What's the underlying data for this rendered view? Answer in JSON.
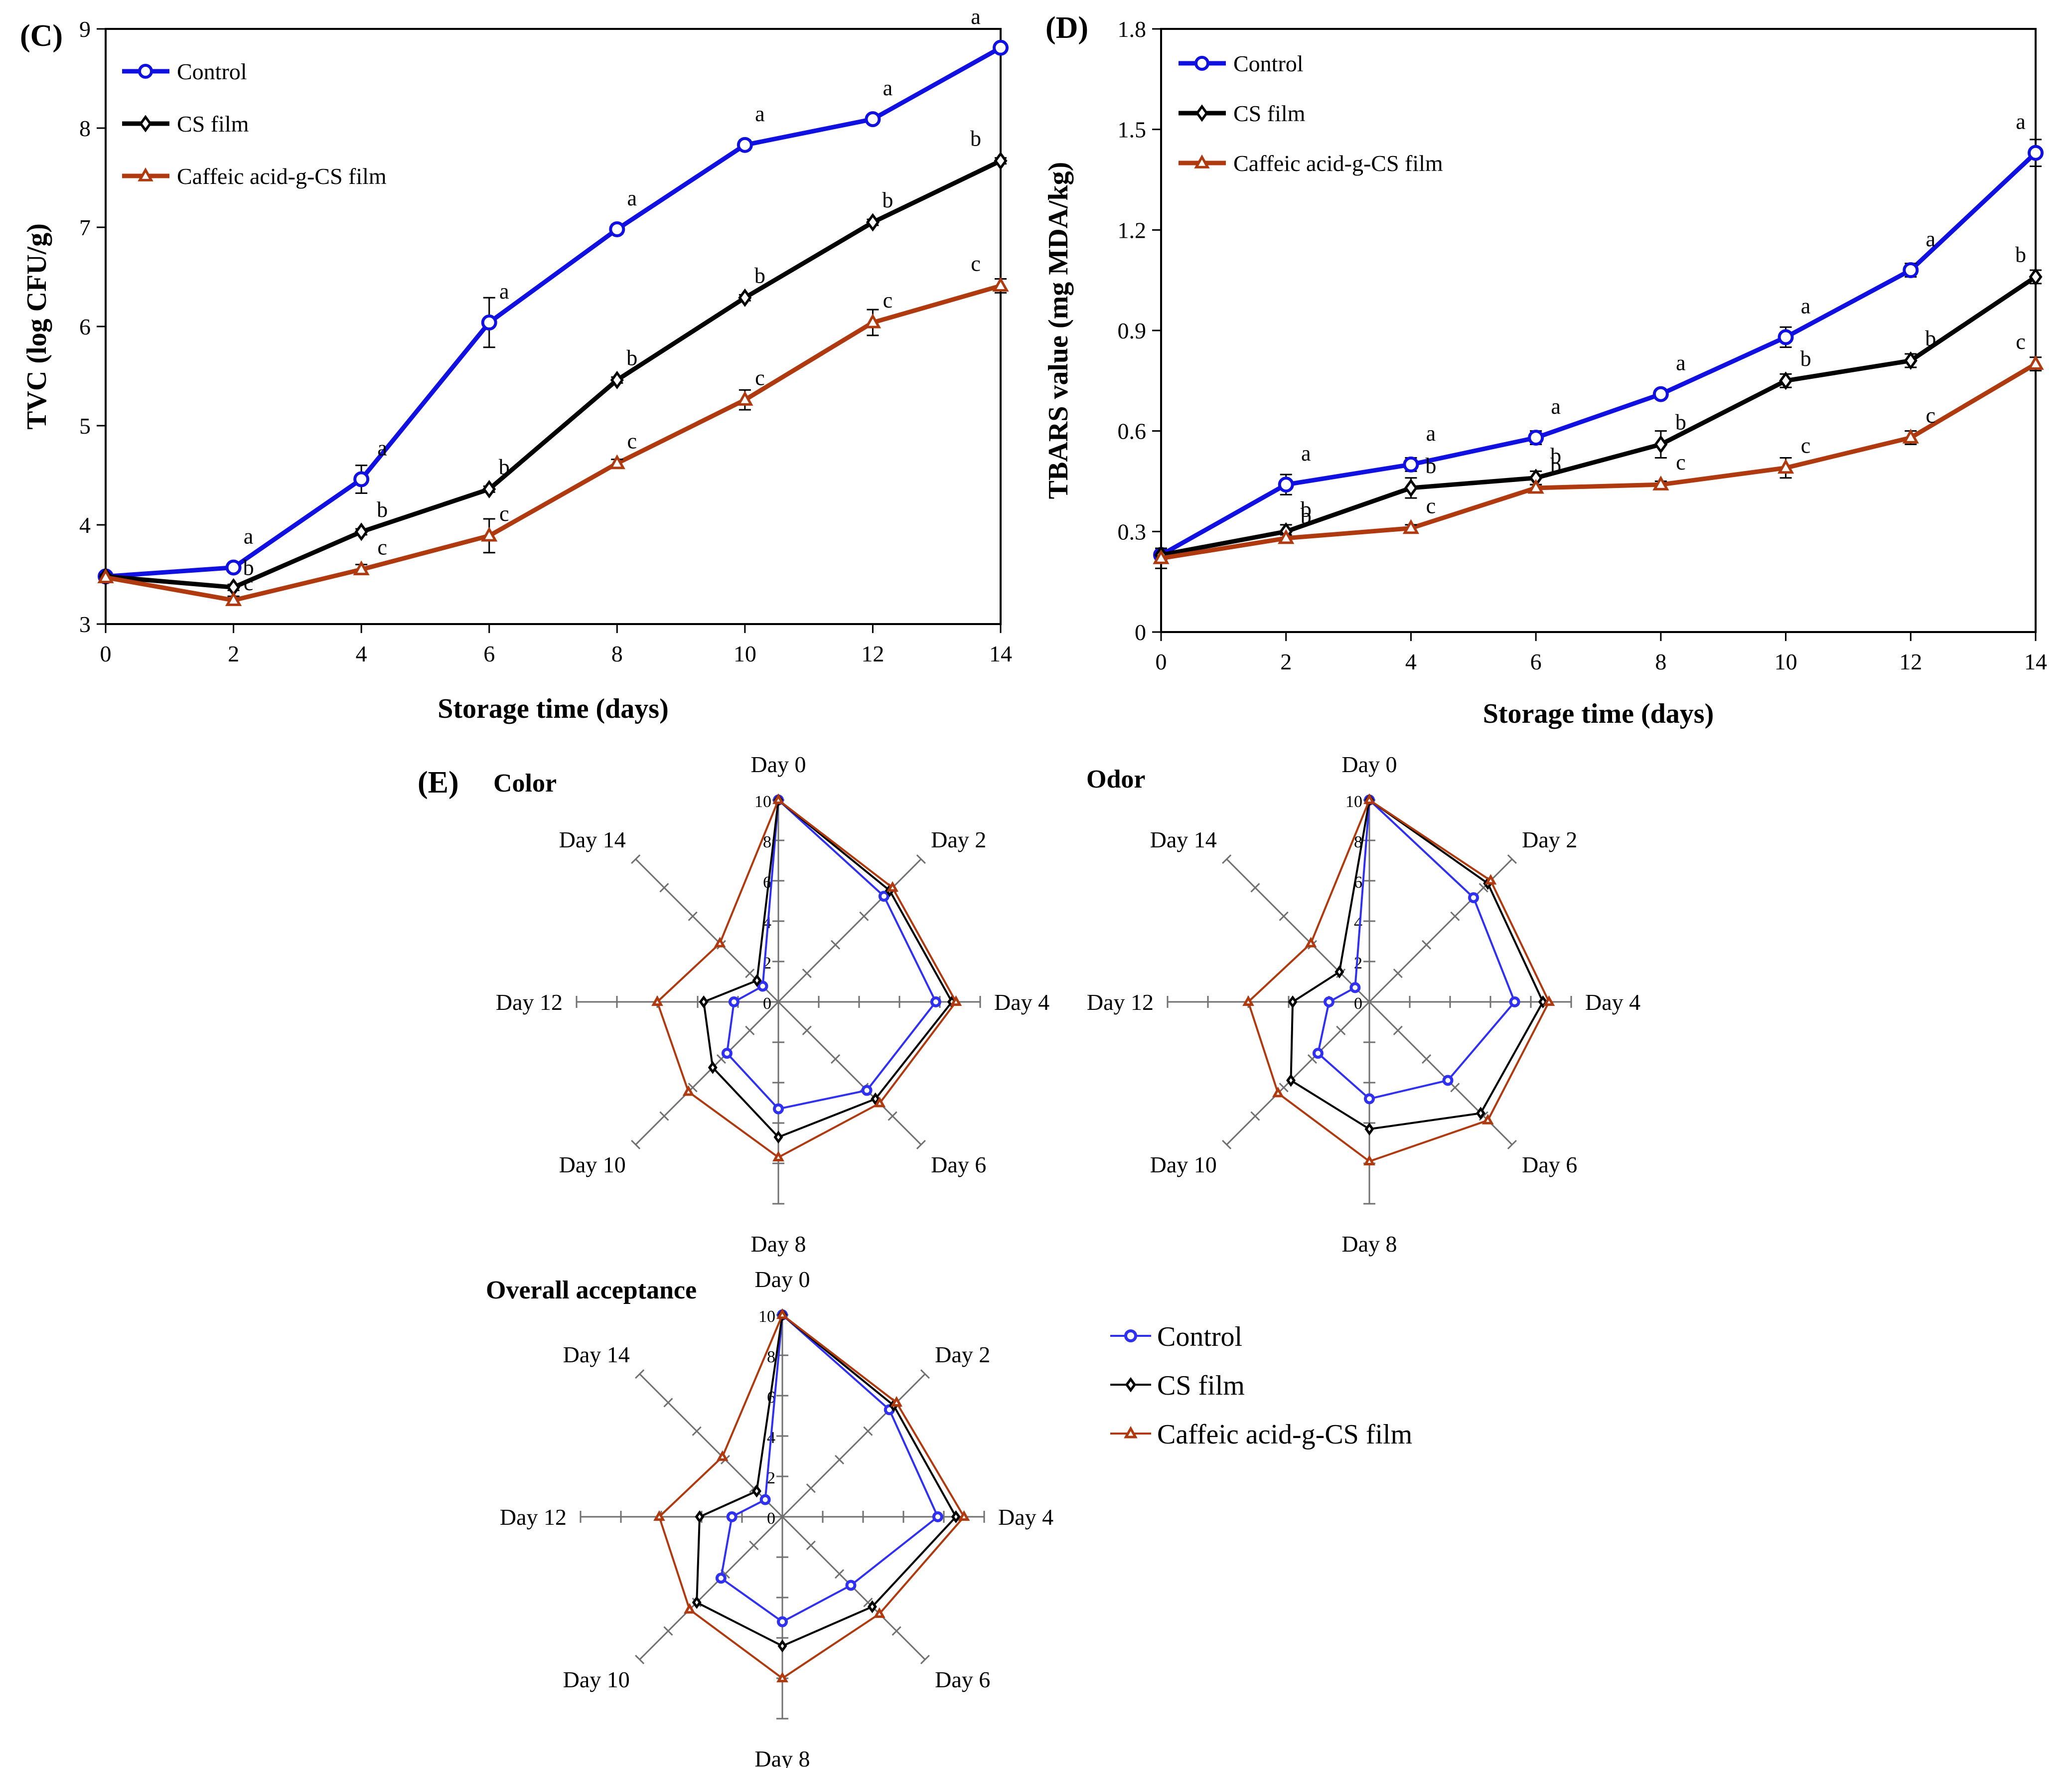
{
  "chart_data": [
    {
      "panel": "(C)",
      "type": "line",
      "xlabel": "Storage time (days)",
      "ylabel": "TVC (log CFU/g)",
      "x": [
        0,
        2,
        4,
        6,
        8,
        10,
        12,
        14
      ],
      "xlim": [
        0,
        14
      ],
      "ylim": [
        3,
        9
      ],
      "yticks": [
        3,
        4,
        5,
        6,
        7,
        8,
        9
      ],
      "legend_position": "top-left",
      "series": [
        {
          "name": "Control",
          "color": "#1010e0",
          "marker": "circle",
          "values": [
            3.48,
            3.57,
            4.46,
            6.04,
            6.98,
            7.83,
            8.09,
            8.81
          ],
          "errors": [
            0.03,
            0.03,
            0.14,
            0.25,
            0.05,
            0.05,
            0.04,
            0.04
          ],
          "labels": [
            "",
            "a",
            "a",
            "a",
            "a",
            "a",
            "a",
            "a"
          ]
        },
        {
          "name": "CS film",
          "color": "#000000",
          "marker": "diamond",
          "values": [
            3.48,
            3.37,
            3.93,
            4.36,
            5.46,
            6.29,
            7.05,
            7.67
          ],
          "errors": [
            0.02,
            0.03,
            0.03,
            0.03,
            0.03,
            0.03,
            0.03,
            0.03
          ],
          "labels": [
            "",
            "b",
            "b",
            "b",
            "b",
            "b",
            "b",
            "b"
          ]
        },
        {
          "name": "Caffeic acid-g-CS film",
          "color": "#b03a10",
          "marker": "triangle",
          "values": [
            3.47,
            3.24,
            3.55,
            3.89,
            4.62,
            5.26,
            6.04,
            6.41
          ],
          "errors": [
            0.03,
            0.04,
            0.05,
            0.17,
            0.04,
            0.1,
            0.13,
            0.07
          ],
          "labels": [
            "",
            "c",
            "c",
            "c",
            "c",
            "c",
            "c",
            "c"
          ]
        }
      ]
    },
    {
      "panel": "(D)",
      "type": "line",
      "xlabel": "Storage time (days)",
      "ylabel": "TBARS value (mg MDA/kg)",
      "x": [
        0,
        2,
        4,
        6,
        8,
        10,
        12,
        14
      ],
      "xlim": [
        0,
        14
      ],
      "ylim": [
        0,
        1.8
      ],
      "yticks": [
        "0",
        "0.3",
        "0.6",
        "0.9",
        "1.2",
        "1.5",
        "1.8"
      ],
      "legend_position": "top-left",
      "series": [
        {
          "name": "Control",
          "color": "#1010e0",
          "marker": "circle",
          "values": [
            0.23,
            0.44,
            0.5,
            0.58,
            0.71,
            0.88,
            1.08,
            1.43
          ],
          "errors": [
            0.01,
            0.03,
            0.02,
            0.02,
            0.01,
            0.03,
            0.02,
            0.04
          ],
          "labels": [
            "",
            "a",
            "a",
            "a",
            "a",
            "a",
            "a",
            "a"
          ]
        },
        {
          "name": "CS film",
          "color": "#000000",
          "marker": "diamond",
          "values": [
            0.23,
            0.3,
            0.43,
            0.46,
            0.56,
            0.75,
            0.81,
            1.06
          ],
          "errors": [
            0.02,
            0.02,
            0.03,
            0.02,
            0.04,
            0.02,
            0.02,
            0.02
          ],
          "labels": [
            "",
            "b",
            "b",
            "b",
            "b",
            "b",
            "b",
            "b"
          ]
        },
        {
          "name": "Caffeic acid-g-CS film",
          "color": "#b03a10",
          "marker": "triangle",
          "values": [
            0.22,
            0.28,
            0.31,
            0.43,
            0.44,
            0.49,
            0.58,
            0.8
          ],
          "errors": [
            0.03,
            0.01,
            0.01,
            0.01,
            0.01,
            0.03,
            0.02,
            0.02
          ],
          "labels": [
            "",
            "b",
            "c",
            "b",
            "c",
            "c",
            "c",
            "c"
          ]
        }
      ]
    },
    {
      "panel": "(E)",
      "type": "radar",
      "title": "Color",
      "axes": [
        "Day 0",
        "Day 2",
        "Day 4",
        "Day 6",
        "Day 8",
        "Day 10",
        "Day 12",
        "Day 14"
      ],
      "rlim": [
        0,
        10
      ],
      "rticks": [
        "0",
        "2",
        "4",
        "6",
        "8",
        "10"
      ],
      "series": [
        {
          "name": "Control",
          "values": [
            10,
            7.4,
            7.8,
            6.2,
            5.3,
            3.6,
            2.2,
            1.1
          ]
        },
        {
          "name": "CS film",
          "values": [
            10,
            7.8,
            8.6,
            6.8,
            6.7,
            4.6,
            3.7,
            1.5
          ]
        },
        {
          "name": "Caffeic acid-g-CS film",
          "values": [
            10,
            8.0,
            8.8,
            7.1,
            7.7,
            6.3,
            6.0,
            4.1
          ]
        }
      ]
    },
    {
      "type": "radar",
      "title": "Odor",
      "axes": [
        "Day 0",
        "Day 2",
        "Day 4",
        "Day 6",
        "Day 8",
        "Day 10",
        "Day 12",
        "Day 14"
      ],
      "rlim": [
        0,
        10
      ],
      "rticks": [
        "0",
        "2",
        "4",
        "6",
        "8",
        "10"
      ],
      "series": [
        {
          "name": "Control",
          "values": [
            10,
            7.3,
            7.2,
            5.5,
            4.8,
            3.6,
            2.0,
            1.0
          ]
        },
        {
          "name": "CS film",
          "values": [
            10,
            8.3,
            8.6,
            7.8,
            6.3,
            5.5,
            3.8,
            2.1
          ]
        },
        {
          "name": "Caffeic acid-g-CS film",
          "values": [
            10,
            8.5,
            8.9,
            8.3,
            7.9,
            6.4,
            6.0,
            4.1
          ]
        }
      ]
    },
    {
      "type": "radar",
      "title": "Overall acceptance",
      "axes": [
        "Day 0",
        "Day 2",
        "Day 4",
        "Day 6",
        "Day 8",
        "Day 10",
        "Day 12",
        "Day 14"
      ],
      "rlim": [
        0,
        10
      ],
      "rticks": [
        "0",
        "2",
        "4",
        "6",
        "8",
        "10"
      ],
      "series": [
        {
          "name": "Control",
          "values": [
            10,
            7.5,
            7.7,
            4.8,
            5.2,
            4.3,
            2.5,
            1.2
          ]
        },
        {
          "name": "CS film",
          "values": [
            10,
            7.8,
            8.6,
            6.3,
            6.4,
            6.0,
            4.1,
            1.8
          ]
        },
        {
          "name": "Caffeic acid-g-CS film",
          "values": [
            10,
            8.0,
            9.0,
            6.8,
            8.0,
            6.5,
            6.1,
            4.2
          ]
        }
      ]
    }
  ],
  "radar_legend": [
    {
      "name": "Control",
      "color": "#3030f0"
    },
    {
      "name": "CS film",
      "color": "#000000"
    },
    {
      "name": "Caffeic acid-g-CS film",
      "color": "#b03a10"
    }
  ]
}
